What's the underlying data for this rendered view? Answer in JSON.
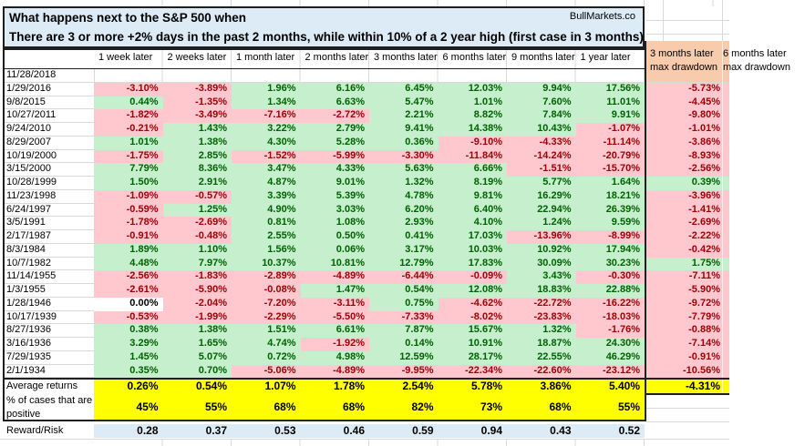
{
  "title": {
    "line1": "What happens next to the S&P 500 when",
    "line2": "There are 3 or more +2% days in the past 2 months, while within 10% of a 2 year high (first case in 3 months)",
    "brand": "BullMarkets.co"
  },
  "columns": [
    "1 week later",
    "2 weeks later",
    "1 month later",
    "2 months later",
    "3 months later",
    "6 months later",
    "9 months later",
    "1 year later"
  ],
  "drawdown_header": {
    "line1": "3 months later",
    "line2": "max drawdown"
  },
  "partial_right_column_header": {
    "line1": "6 months later",
    "line2": "max drawdown"
  },
  "rows": [
    {
      "date": "11/28/2018",
      "values": [
        null,
        null,
        null,
        null,
        null,
        null,
        null,
        null
      ],
      "drawdown": null
    },
    {
      "date": "1/29/2016",
      "values": [
        "-3.10%",
        "-3.89%",
        "1.96%",
        "6.16%",
        "6.45%",
        "12.03%",
        "9.94%",
        "17.56%"
      ],
      "drawdown": "-5.73%"
    },
    {
      "date": "9/8/2015",
      "values": [
        "0.44%",
        "-1.35%",
        "1.34%",
        "6.63%",
        "5.47%",
        "1.01%",
        "7.60%",
        "11.01%"
      ],
      "drawdown": "-4.45%"
    },
    {
      "date": "10/27/2011",
      "values": [
        "-1.82%",
        "-3.49%",
        "-7.16%",
        "-2.72%",
        "2.21%",
        "8.82%",
        "7.84%",
        "9.91%"
      ],
      "drawdown": "-9.80%"
    },
    {
      "date": "9/24/2010",
      "values": [
        "-0.21%",
        "1.43%",
        "3.22%",
        "2.79%",
        "9.41%",
        "14.38%",
        "10.43%",
        "-1.07%"
      ],
      "drawdown": "-1.01%"
    },
    {
      "date": "8/29/2007",
      "values": [
        "1.01%",
        "1.38%",
        "4.30%",
        "5.28%",
        "0.36%",
        "-9.10%",
        "-4.33%",
        "-11.14%"
      ],
      "drawdown": "-3.86%"
    },
    {
      "date": "10/19/2000",
      "values": [
        "-1.75%",
        "2.85%",
        "-1.52%",
        "-5.99%",
        "-3.30%",
        "-11.84%",
        "-14.24%",
        "-20.79%"
      ],
      "drawdown": "-8.93%"
    },
    {
      "date": "3/15/2000",
      "values": [
        "7.79%",
        "8.36%",
        "3.47%",
        "4.33%",
        "5.63%",
        "6.66%",
        "-1.51%",
        "-15.70%"
      ],
      "drawdown": "-2.56%"
    },
    {
      "date": "10/28/1999",
      "values": [
        "1.50%",
        "2.91%",
        "4.87%",
        "9.01%",
        "1.32%",
        "8.19%",
        "5.77%",
        "1.64%"
      ],
      "drawdown": "0.39%"
    },
    {
      "date": "11/23/1998",
      "values": [
        "-1.09%",
        "-0.57%",
        "3.39%",
        "5.39%",
        "4.78%",
        "9.81%",
        "16.29%",
        "18.21%"
      ],
      "drawdown": "-3.96%"
    },
    {
      "date": "6/24/1997",
      "values": [
        "-0.59%",
        "1.25%",
        "4.90%",
        "3.03%",
        "6.20%",
        "6.40%",
        "22.94%",
        "26.39%"
      ],
      "drawdown": "-1.41%"
    },
    {
      "date": "3/5/1991",
      "values": [
        "-1.78%",
        "-2.69%",
        "0.81%",
        "1.08%",
        "2.93%",
        "4.10%",
        "1.24%",
        "9.59%"
      ],
      "drawdown": "-2.69%"
    },
    {
      "date": "2/17/1987",
      "values": [
        "-0.91%",
        "-0.48%",
        "2.55%",
        "0.50%",
        "0.41%",
        "17.03%",
        "-13.96%",
        "-8.99%"
      ],
      "drawdown": "-2.22%"
    },
    {
      "date": "8/3/1984",
      "values": [
        "1.89%",
        "1.10%",
        "1.56%",
        "0.06%",
        "3.17%",
        "10.03%",
        "10.92%",
        "17.94%"
      ],
      "drawdown": "-0.42%"
    },
    {
      "date": "10/7/1982",
      "values": [
        "4.48%",
        "7.97%",
        "10.37%",
        "10.81%",
        "12.79%",
        "17.83%",
        "30.09%",
        "30.23%"
      ],
      "drawdown": "1.75%"
    },
    {
      "date": "11/14/1955",
      "values": [
        "-2.56%",
        "-1.83%",
        "-2.89%",
        "-4.89%",
        "-6.44%",
        "-0.09%",
        "3.43%",
        "-0.30%"
      ],
      "drawdown": "-7.11%"
    },
    {
      "date": "1/3/1955",
      "values": [
        "-2.61%",
        "-5.90%",
        "-0.08%",
        "1.47%",
        "0.54%",
        "12.08%",
        "18.83%",
        "22.88%"
      ],
      "drawdown": "-5.90%"
    },
    {
      "date": "1/28/1946",
      "values": [
        "0.00%",
        "-2.04%",
        "-7.20%",
        "-3.11%",
        "0.75%",
        "-4.62%",
        "-22.72%",
        "-16.22%"
      ],
      "drawdown": "-9.72%"
    },
    {
      "date": "10/17/1939",
      "values": [
        "-0.53%",
        "-1.99%",
        "-2.29%",
        "-5.50%",
        "-7.33%",
        "-8.02%",
        "-23.83%",
        "-18.03%"
      ],
      "drawdown": "-7.79%"
    },
    {
      "date": "8/27/1936",
      "values": [
        "0.38%",
        "1.38%",
        "1.51%",
        "6.61%",
        "7.87%",
        "15.67%",
        "1.32%",
        "-1.76%"
      ],
      "drawdown": "-0.88%"
    },
    {
      "date": "3/16/1936",
      "values": [
        "3.29%",
        "1.65%",
        "4.74%",
        "-1.92%",
        "0.14%",
        "10.91%",
        "18.87%",
        "24.30%"
      ],
      "drawdown": "-7.14%"
    },
    {
      "date": "7/29/1935",
      "values": [
        "1.45%",
        "5.07%",
        "0.72%",
        "4.98%",
        "12.59%",
        "28.17%",
        "22.55%",
        "46.29%"
      ],
      "drawdown": "-0.91%"
    },
    {
      "date": "2/1/1934",
      "values": [
        "0.35%",
        "0.70%",
        "-5.06%",
        "-4.89%",
        "-9.95%",
        "-22.34%",
        "-22.60%",
        "-23.12%"
      ],
      "drawdown": "-10.56%"
    }
  ],
  "summary": {
    "average_label": "Average returns",
    "average_values": [
      "0.26%",
      "0.54%",
      "1.07%",
      "1.78%",
      "2.54%",
      "5.78%",
      "3.86%",
      "5.40%"
    ],
    "average_drawdown": "-4.31%",
    "percent_label_lines": [
      "% of cases that are",
      "positive"
    ],
    "percent_values": [
      "45%",
      "55%",
      "68%",
      "68%",
      "82%",
      "73%",
      "68%",
      "55%"
    ],
    "reward_risk_label": "Reward/Risk",
    "reward_risk_values": [
      "0.28",
      "0.37",
      "0.53",
      "0.46",
      "0.59",
      "0.94",
      "0.43",
      "0.52"
    ]
  },
  "colors": {
    "positive_bg": "#C6EFCE",
    "positive_text": "#006100",
    "negative_bg": "#FFC7CE",
    "negative_text": "#9C0006",
    "title_bg": "#DDEBF7",
    "orange_header_bg": "#F8CBAD",
    "summary_bg": "#FFFF00",
    "reward_risk_bg": "#DDEBF7"
  }
}
